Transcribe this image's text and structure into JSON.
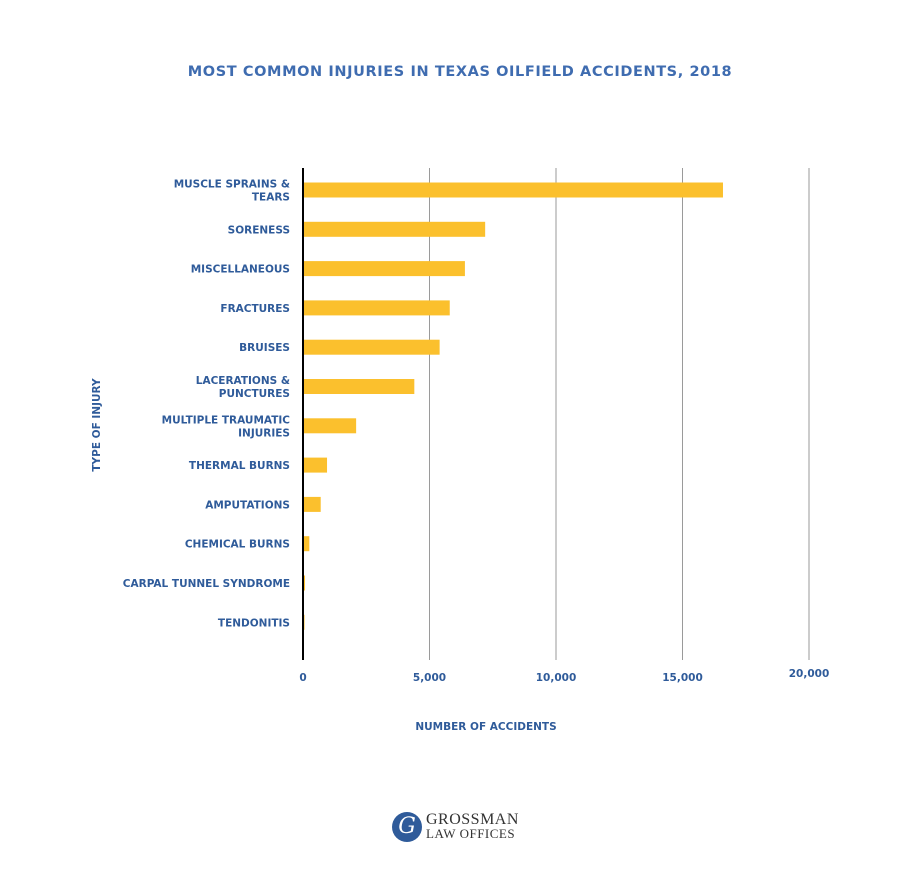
{
  "chart_data": {
    "type": "bar",
    "orientation": "horizontal",
    "title": "MOST COMMON INJURIES IN TEXAS OILFIELD ACCIDENTS, 2018",
    "xlabel": "NUMBER OF ACCIDENTS",
    "ylabel": "TYPE OF INJURY",
    "categories": [
      [
        "MUSCLE SPRAINS &",
        "TEARS"
      ],
      [
        "SORENESS"
      ],
      [
        "MISCELLANEOUS"
      ],
      [
        "FRACTURES"
      ],
      [
        "BRUISES"
      ],
      [
        "LACERATIONS &",
        "PUNCTURES"
      ],
      [
        "MULTIPLE TRAUMATIC",
        "INJURIES"
      ],
      [
        "THERMAL BURNS"
      ],
      [
        "AMPUTATIONS"
      ],
      [
        "CHEMICAL BURNS"
      ],
      [
        "CARPAL TUNNEL SYNDROME"
      ],
      [
        "TENDONITIS"
      ]
    ],
    "values": [
      16600,
      7200,
      6400,
      5800,
      5400,
      4400,
      2100,
      950,
      700,
      250,
      80,
      50
    ],
    "xlim": [
      0,
      20000
    ],
    "xticks": [
      {
        "value": 0,
        "label": "0"
      },
      {
        "value": 5000,
        "label": "5,000"
      },
      {
        "value": 10000,
        "label": "10,000"
      },
      {
        "value": 15000,
        "label": "15,000"
      },
      {
        "value": 20000,
        "label": "20,000"
      }
    ],
    "grid": true,
    "legend": "none",
    "colors": {
      "bar": "#fbc02d",
      "text": "#2f5b9a",
      "title": "#3f6cb0",
      "grid": "#9a9a9a",
      "axis": "#000000"
    }
  },
  "logo": {
    "mark": "G",
    "line1": "GROSSMAN",
    "line2": "LAW OFFICES"
  }
}
